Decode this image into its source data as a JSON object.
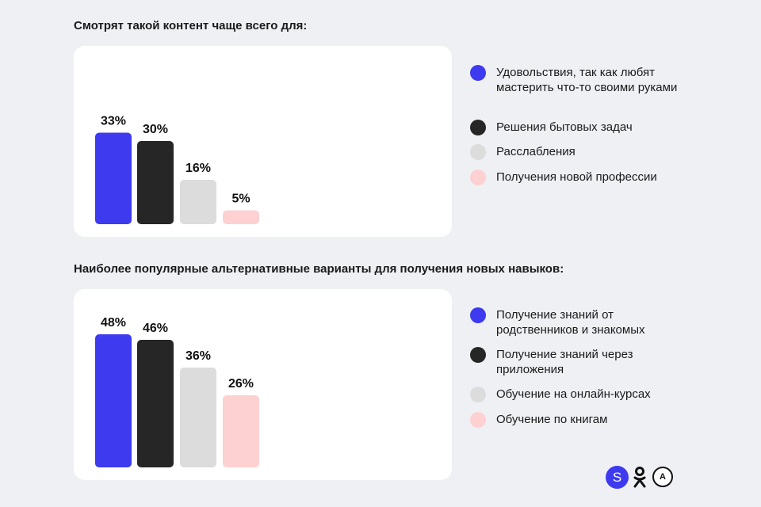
{
  "colors": {
    "blue": "#3d3af0",
    "black": "#262626",
    "gray": "#dcdcdc",
    "pink": "#fdd1d1"
  },
  "chart_data": [
    {
      "type": "bar",
      "title": "Смотрят такой контент чаще всего для:",
      "categories": [
        "Удовольствия, так как любят мастерить что-то своими руками",
        "Решения бытовых задач",
        "Расслабления",
        "Получения новой профессии"
      ],
      "values": [
        33,
        30,
        16,
        5
      ],
      "value_labels": [
        "33%",
        "30%",
        "16%",
        "5%"
      ],
      "colors": [
        "#3d3af0",
        "#262626",
        "#dcdcdc",
        "#fdd1d1"
      ],
      "legend_placement": "right",
      "grid": false
    },
    {
      "type": "bar",
      "title": "Наиболее популярные альтернативные варианты для получения новых навыков:",
      "categories": [
        "Получение знаний от родственников и знакомых",
        "Получение знаний через приложения",
        "Обучение на онлайн-курсах",
        "Обучение по книгам"
      ],
      "values": [
        48,
        46,
        36,
        26
      ],
      "value_labels": [
        "48%",
        "46%",
        "36%",
        "26%"
      ],
      "colors": [
        "#3d3af0",
        "#262626",
        "#dcdcdc",
        "#fdd1d1"
      ],
      "legend_placement": "right",
      "grid": false
    }
  ],
  "logos": {
    "s_letter": "S",
    "a_letter": "A"
  }
}
